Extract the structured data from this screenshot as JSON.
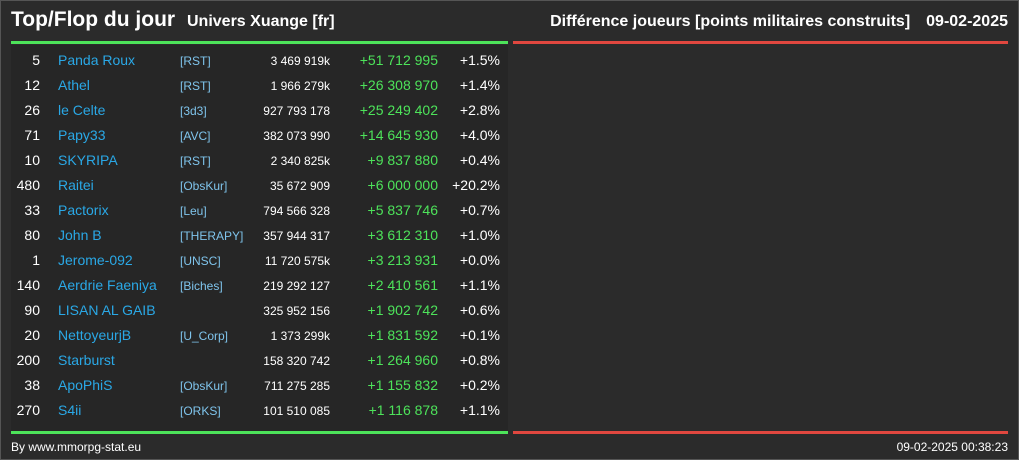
{
  "header": {
    "title": "Top/Flop du jour",
    "universe": "Univers Xuange [fr]",
    "subtitle": "Différence joueurs [points militaires construits]",
    "date": "09-02-2025"
  },
  "colors": {
    "accent_green": "#4de35a",
    "accent_red": "#e0473f",
    "player_name": "#2aa8e6",
    "alliance": "#7fc4ec"
  },
  "rows": [
    {
      "rank": "5",
      "name": "Panda Roux",
      "alliance": "[RST]",
      "points": "3 469 919k",
      "diff": "+51 712 995",
      "pct": "+1.5%"
    },
    {
      "rank": "12",
      "name": "Athel",
      "alliance": "[RST]",
      "points": "1 966 279k",
      "diff": "+26 308 970",
      "pct": "+1.4%"
    },
    {
      "rank": "26",
      "name": "le Celte",
      "alliance": "[3d3]",
      "points": "927 793 178",
      "diff": "+25 249 402",
      "pct": "+2.8%"
    },
    {
      "rank": "71",
      "name": "Papy33",
      "alliance": "[AVC]",
      "points": "382 073 990",
      "diff": "+14 645 930",
      "pct": "+4.0%"
    },
    {
      "rank": "10",
      "name": "SKYRIPA",
      "alliance": "[RST]",
      "points": "2 340 825k",
      "diff": "+9 837 880",
      "pct": "+0.4%"
    },
    {
      "rank": "480",
      "name": "Raitei",
      "alliance": "[ObsKur]",
      "points": "35 672 909",
      "diff": "+6 000 000",
      "pct": "+20.2%"
    },
    {
      "rank": "33",
      "name": "Pactorix",
      "alliance": "[Leu]",
      "points": "794 566 328",
      "diff": "+5 837 746",
      "pct": "+0.7%"
    },
    {
      "rank": "80",
      "name": "John B",
      "alliance": "[THERAPY]",
      "points": "357 944 317",
      "diff": "+3 612 310",
      "pct": "+1.0%"
    },
    {
      "rank": "1",
      "name": "Jerome-092",
      "alliance": "[UNSC]",
      "points": "11 720 575k",
      "diff": "+3 213 931",
      "pct": "+0.0%"
    },
    {
      "rank": "140",
      "name": "Aerdrie Faeniya",
      "alliance": "[Biches]",
      "points": "219 292 127",
      "diff": "+2 410 561",
      "pct": "+1.1%"
    },
    {
      "rank": "90",
      "name": "LISAN AL GAIB",
      "alliance": "",
      "points": "325 952 156",
      "diff": "+1 902 742",
      "pct": "+0.6%"
    },
    {
      "rank": "20",
      "name": "NettoyeurjB",
      "alliance": "[U_Corp]",
      "points": "1 373 299k",
      "diff": "+1 831 592",
      "pct": "+0.1%"
    },
    {
      "rank": "200",
      "name": "Starburst",
      "alliance": "",
      "points": "158 320 742",
      "diff": "+1 264 960",
      "pct": "+0.8%"
    },
    {
      "rank": "38",
      "name": "ApoPhiS",
      "alliance": "[ObsKur]",
      "points": "711 275 285",
      "diff": "+1 155 832",
      "pct": "+0.2%"
    },
    {
      "rank": "270",
      "name": "S4ii",
      "alliance": "[ORKS]",
      "points": "101 510 085",
      "diff": "+1 116 878",
      "pct": "+1.1%"
    }
  ],
  "footer": {
    "source": "By www.mmorpg-stat.eu",
    "timestamp": "09-02-2025 00:38:23"
  }
}
